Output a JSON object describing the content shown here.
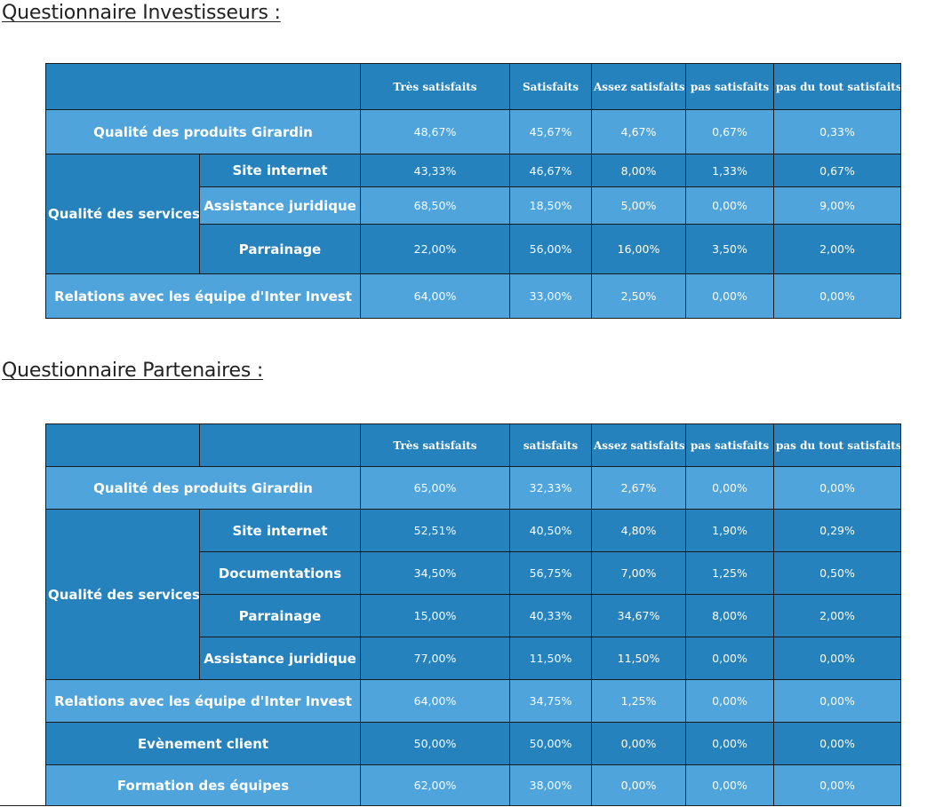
{
  "investisseurs": {
    "title": "Questionnaire Investisseurs :",
    "headers": [
      "",
      "Très satisfaits",
      "Satisfaits",
      "Assez satisfaits",
      "pas satisfaits",
      "pas du tout satisfaits"
    ],
    "rows": [
      {
        "label": "Qualité des produits Girardin",
        "values": [
          "48,67%",
          "45,67%",
          "4,67%",
          "0,67%",
          "0,33%"
        ]
      },
      {
        "group": "Qualité des services",
        "label": "Site internet",
        "values": [
          "43,33%",
          "46,67%",
          "8,00%",
          "1,33%",
          "0,67%"
        ]
      },
      {
        "group": "Qualité des services",
        "label": "Assistance juridique",
        "values": [
          "68,50%",
          "18,50%",
          "5,00%",
          "0,00%",
          "9,00%"
        ]
      },
      {
        "group": "Qualité des services",
        "label": "Parrainage",
        "values": [
          "22,00%",
          "56,00%",
          "16,00%",
          "3,50%",
          "2,00%"
        ]
      },
      {
        "label": "Relations avec les équipe d'Inter Invest",
        "values": [
          "64,00%",
          "33,00%",
          "2,50%",
          "0,00%",
          "0,00%"
        ]
      }
    ]
  },
  "partenaires": {
    "title": "Questionnaire Partenaires :",
    "headers": [
      "",
      "",
      "Très satisfaits",
      "satisfaits",
      "Assez satisfaits",
      "pas satisfaits",
      "pas du tout satisfaits"
    ],
    "rows": [
      {
        "label": "Qualité des produits Girardin",
        "values": [
          "65,00%",
          "32,33%",
          "2,67%",
          "0,00%",
          "0,00%"
        ]
      },
      {
        "group": "Qualité des services",
        "label": "Site internet",
        "values": [
          "52,51%",
          "40,50%",
          "4,80%",
          "1,90%",
          "0,29%"
        ]
      },
      {
        "group": "Qualité des services",
        "label": "Documentations",
        "values": [
          "34,50%",
          "56,75%",
          "7,00%",
          "1,25%",
          "0,50%"
        ]
      },
      {
        "group": "Qualité des services",
        "label": "Parrainage",
        "values": [
          "15,00%",
          "40,33%",
          "34,67%",
          "8,00%",
          "2,00%"
        ]
      },
      {
        "group": "Qualité des services",
        "label": "Assistance juridique",
        "values": [
          "77,00%",
          "11,50%",
          "11,50%",
          "0,00%",
          "0,00%"
        ]
      },
      {
        "label": "Relations avec les équipe d'Inter Invest",
        "values": [
          "64,00%",
          "34,75%",
          "1,25%",
          "0,00%",
          "0,00%"
        ]
      },
      {
        "label": "Evènement client",
        "values": [
          "50,00%",
          "50,00%",
          "0,00%",
          "0,00%",
          "0,00%"
        ]
      },
      {
        "label": "Formation des équipes",
        "values": [
          "62,00%",
          "38,00%",
          "0,00%",
          "0,00%",
          "0,00%"
        ]
      }
    ]
  },
  "colors": {
    "header_bg": "#2582bd",
    "row_dark": "#2582bd",
    "row_light": "#4fa4dc",
    "border": "#1a1a1a",
    "text": "#ffffff"
  }
}
